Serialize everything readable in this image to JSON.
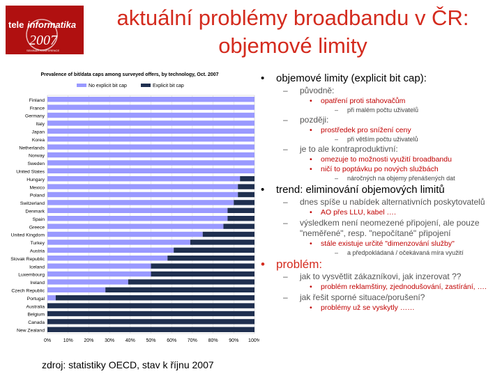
{
  "logo": {
    "line1": "tele",
    "line1b": "informatika",
    "line2": "2007",
    "line3": "SEMINÁŘ KONFERENCE"
  },
  "title": {
    "line1": "aktuální problémy broadbandu v ČR:",
    "line2": "objemové limity"
  },
  "source": "zdroj: statistiky OECD, stav k říjnu 2007",
  "colors": {
    "no_cap": "#9999ff",
    "explicit_cap": "#1f2f4f",
    "title": "#d42b1e"
  },
  "chart_data": {
    "type": "bar",
    "orientation": "horizontal-stacked-100",
    "title": "Prevalence of bit/data caps among surveyed offers, by technology, Oct. 2007",
    "legend": [
      "No explicit bit cap",
      "Explicit bit cap"
    ],
    "legend_position": "top",
    "categories": [
      "Finland",
      "France",
      "Germany",
      "Italy",
      "Japan",
      "Korea",
      "Netherlands",
      "Norway",
      "Sweden",
      "United States",
      "Hungary",
      "Mexico",
      "Poland",
      "Switzerland",
      "Denmark",
      "Spain",
      "Greece",
      "United Kingdom",
      "Turkey",
      "Austria",
      "Slovak Republic",
      "Iceland",
      "Luxembourg",
      "Ireland",
      "Czech Republic",
      "Portugal",
      "Australia",
      "Belgium",
      "Canada",
      "New Zealand"
    ],
    "series": [
      {
        "name": "No explicit bit cap",
        "values": [
          100,
          100,
          100,
          100,
          100,
          100,
          100,
          100,
          100,
          100,
          93,
          92,
          92,
          90,
          87,
          87,
          85,
          75,
          69,
          61,
          58,
          50,
          50,
          39,
          28,
          4,
          0,
          0,
          0,
          0
        ]
      },
      {
        "name": "Explicit bit cap",
        "values": [
          0,
          0,
          0,
          0,
          0,
          0,
          0,
          0,
          0,
          0,
          7,
          8,
          8,
          10,
          13,
          13,
          15,
          25,
          31,
          39,
          42,
          50,
          50,
          61,
          72,
          96,
          100,
          100,
          100,
          100
        ]
      }
    ],
    "xlim": [
      0,
      100
    ],
    "xticks": [
      "0%",
      "10%",
      "20%",
      "30%",
      "40%",
      "50%",
      "60%",
      "70%",
      "80%",
      "90%",
      "100%"
    ],
    "grid": true
  },
  "notes": [
    {
      "level": 0,
      "text": "objemové limity (explicit bit cap):"
    },
    {
      "level": 1,
      "text": "původně:"
    },
    {
      "level": 2,
      "text": "opatření proti stahovačům"
    },
    {
      "level": 3,
      "text": "při malém počtu uživatelů"
    },
    {
      "level": 1,
      "text": "později:"
    },
    {
      "level": 2,
      "text": "prostředek pro snížení ceny"
    },
    {
      "level": 3,
      "text": "při větším počtu uživatelů"
    },
    {
      "level": 1,
      "text": "je to ale kontraproduktivní:"
    },
    {
      "level": 2,
      "text": "omezuje to možnosti využití broadbandu"
    },
    {
      "level": 2,
      "text": "ničí to poptávku po nových službách"
    },
    {
      "level": 3,
      "text": "náročných na objemy přenášených dat"
    },
    {
      "level": 0,
      "text": "trend: eliminování objemových limitů"
    },
    {
      "level": 1,
      "text": "dnes spíše u nabídek alternativních poskytovatelů"
    },
    {
      "level": 2,
      "text": "AO přes LLU, kabel …."
    },
    {
      "level": 1,
      "text": "výsledkem není neomezené připojení, ale pouze \"neměřené\", resp. \"nepočítané\" připojení"
    },
    {
      "level": 2,
      "text": "stále existuje určité \"dimenzování služby\""
    },
    {
      "level": 3,
      "text": "a předpokládaná / očekávaná míra využití"
    },
    {
      "level": 0,
      "text": "problém:",
      "red": true
    },
    {
      "level": 1,
      "text": "jak to vysvětlit zákazníkovi, jak inzerovat ??"
    },
    {
      "level": 2,
      "text": "problém reklamštiny, zjednodušování, zastírání, …."
    },
    {
      "level": 1,
      "text": "jak řešit sporné situace/porušení?"
    },
    {
      "level": 2,
      "text": "problémy už se vyskytly ……"
    }
  ]
}
